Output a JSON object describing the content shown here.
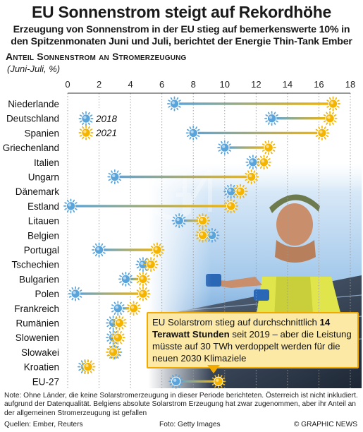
{
  "header": {
    "title": "EU Sonnenstrom steigt auf Rekordhöhe",
    "subtitle_line1": "Erzeugung von Sonnenstrom in der EU stieg auf bemerkenswerte 10% in",
    "subtitle_line2": "den Spitzenmonaten Juni und Juli, berichtet der Energie Thin-Tank Ember"
  },
  "chart_data": {
    "type": "dumbbell",
    "title": "Anteil Sonnenstrom an Stromerzeugung",
    "unit_label": "(Juni-Juli, %)",
    "xlim": [
      0,
      18
    ],
    "xticks": [
      0,
      2,
      4,
      6,
      8,
      10,
      12,
      14,
      16,
      18
    ],
    "legend": {
      "placement": "top-left",
      "entries": [
        "2018",
        "2021"
      ]
    },
    "categories": [
      "Niederlande",
      "Deutschland",
      "Spanien",
      "Griechenland",
      "Italien",
      "Ungarn",
      "Dänemark",
      "Estland",
      "Litauen",
      "Belgien",
      "Portugal",
      "Tschechien",
      "Bulgarien",
      "Polen",
      "Frankreich",
      "Rumänien",
      "Slowenien",
      "Slowakei",
      "Kroatien",
      "EU-27"
    ],
    "series": [
      {
        "name": "2018",
        "values": [
          6.8,
          13.0,
          8.0,
          10.0,
          11.8,
          3.0,
          10.4,
          0.2,
          7.1,
          9.2,
          2.0,
          4.8,
          3.7,
          0.5,
          3.2,
          2.9,
          2.9,
          3.0,
          1.1,
          6.9
        ]
      },
      {
        "name": "2021",
        "values": [
          16.9,
          16.7,
          16.2,
          12.8,
          12.5,
          11.7,
          11.0,
          10.4,
          8.6,
          8.6,
          5.7,
          5.3,
          4.8,
          4.8,
          4.2,
          3.3,
          3.2,
          2.9,
          1.3,
          9.6
        ]
      }
    ],
    "colors": {
      "s2018": "#5aa4dc",
      "s2021": "#f5b400",
      "line_start": "#5aa4dc",
      "line_end": "#f5b400"
    }
  },
  "callout": {
    "pre": "EU Solarstrom stieg auf durchschnittlich",
    "bold": "14 Terawatt Stunden",
    "post": "seit 2019 – aber die Leistung müsste auf 30 TWh verdoppelt werden für die neuen 2030 Klimaziele"
  },
  "footer": {
    "note": "Note: Ohne Länder, die keine Solarstromerzeugung in dieser Periode berichteten. Österreich ist nicht inkludiert. aufgrund der Datenqualität. Belgiens absolute Solarstrom Erzeugung hat zwar zugenommen, aber ihr Anteil an der allgemeinen Stromerzeugung ist gefallen",
    "sources": "Quellen: Ember, Reuters",
    "photo_credit": "Foto: Getty Images",
    "brand": "© GRAPHIC NEWS"
  }
}
